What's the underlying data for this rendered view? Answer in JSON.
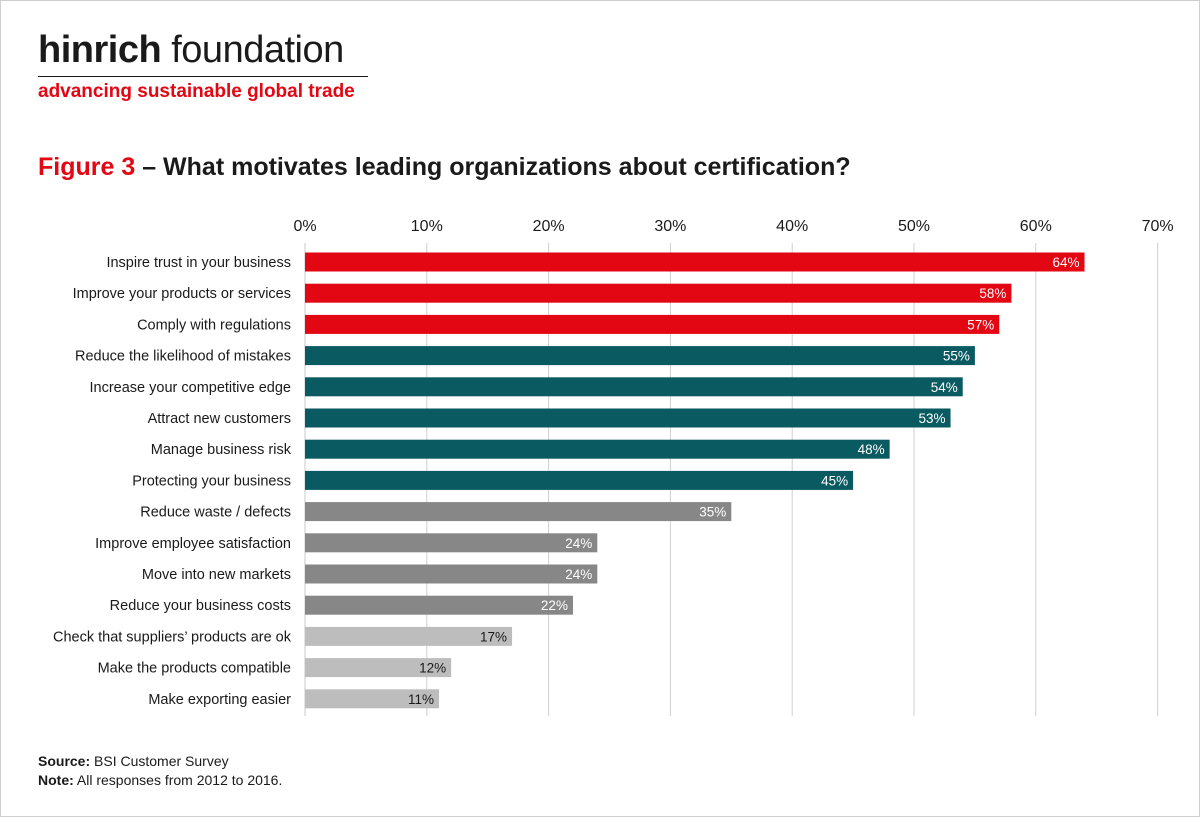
{
  "brand": {
    "name_bold": "hinrich",
    "name_regular": " foundation",
    "tagline": "advancing sustainable global trade"
  },
  "figure": {
    "label": "Figure 3",
    "title": " – What motivates leading organizations about certification?"
  },
  "colors": {
    "top": "#e30613",
    "teal": "#0a5a62",
    "gray": "#878787",
    "light": "#bdbdbd",
    "grid": "#d0d0d0"
  },
  "chart_data": {
    "type": "bar",
    "orientation": "horizontal",
    "title": "What motivates leading organizations about certification?",
    "xlim": [
      0,
      70
    ],
    "x_ticks": [
      "0%",
      "10%",
      "20%",
      "30%",
      "40%",
      "50%",
      "60%",
      "70%"
    ],
    "grid": true,
    "categories": [
      "Inspire trust in your business",
      "Improve your products or services",
      "Comply with regulations",
      "Reduce the likelihood of mistakes",
      "Increase your competitive edge",
      "Attract new customers",
      "Manage business risk",
      "Protecting your business",
      "Reduce waste / defects",
      "Improve employee satisfaction",
      "Move into new markets",
      "Reduce your business costs",
      "Check that suppliers’ products are ok",
      "Make the products compatible",
      "Make exporting easier"
    ],
    "values": [
      64,
      58,
      57,
      55,
      54,
      53,
      48,
      45,
      35,
      24,
      24,
      22,
      17,
      12,
      11
    ],
    "value_labels": [
      "64%",
      "58%",
      "57%",
      "55%",
      "54%",
      "53%",
      "48%",
      "45%",
      "35%",
      "24%",
      "24%",
      "22%",
      "17%",
      "12%",
      "11%"
    ],
    "color_groups": [
      "top",
      "top",
      "top",
      "teal",
      "teal",
      "teal",
      "teal",
      "teal",
      "gray",
      "gray",
      "gray",
      "gray",
      "light",
      "light",
      "light"
    ]
  },
  "notes": {
    "source_label": "Source:",
    "source_text": " BSI Customer Survey",
    "note_label": "Note:",
    "note_text": " All responses from 2012 to 2016."
  }
}
